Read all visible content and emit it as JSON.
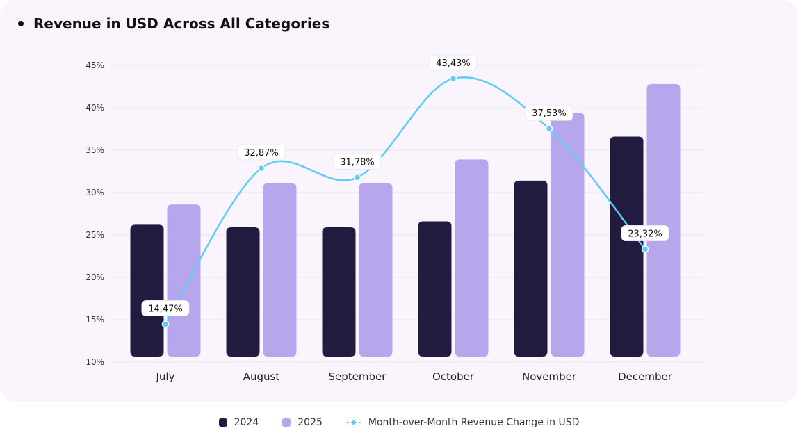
{
  "chart_data": {
    "type": "bar",
    "title": "Revenue in USD Across All Categories",
    "categories": [
      "July",
      "August",
      "September",
      "October",
      "November",
      "December"
    ],
    "y_ticks": [
      "10%",
      "15%",
      "20%",
      "25%",
      "30%",
      "35%",
      "40%",
      "45%"
    ],
    "ylim": [
      10,
      45
    ],
    "grid": true,
    "legend_position": "bottom",
    "series": [
      {
        "name": "2024",
        "type": "bar",
        "color": "#211b3f",
        "values": [
          26.2,
          25.9,
          25.9,
          26.6,
          31.4,
          36.6
        ]
      },
      {
        "name": "2025",
        "type": "bar",
        "color": "#b7a6ec",
        "values": [
          28.6,
          31.1,
          31.1,
          33.9,
          39.4,
          42.8
        ]
      },
      {
        "name": "Month-over-Month Revenue Change in USD",
        "type": "line",
        "color": "#5ccdf7",
        "values": [
          14.47,
          32.87,
          31.78,
          43.43,
          37.53,
          23.32
        ],
        "labels": [
          "14,47%",
          "32,87%",
          "31,78%",
          "43,43%",
          "37,53%",
          "23,32%"
        ]
      }
    ]
  }
}
